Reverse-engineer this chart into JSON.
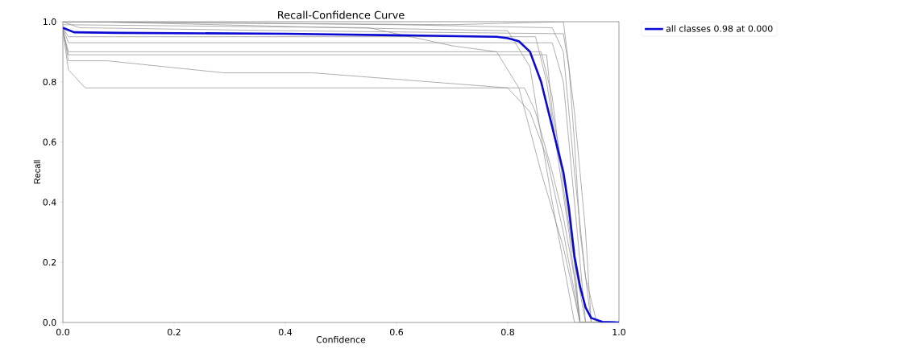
{
  "chart_data": {
    "type": "line",
    "title": "Recall-Confidence Curve",
    "xlabel": "Confidence",
    "ylabel": "Recall",
    "xlim": [
      0,
      1
    ],
    "ylim": [
      0,
      1
    ],
    "xticks": [
      {
        "value": 0,
        "label": "0.0"
      },
      {
        "value": 0.2,
        "label": "0.2"
      },
      {
        "value": 0.4,
        "label": "0.4"
      },
      {
        "value": 0.6,
        "label": "0.6"
      },
      {
        "value": 0.8,
        "label": "0.8"
      },
      {
        "value": 1,
        "label": "1.0"
      }
    ],
    "yticks": [
      {
        "value": 0,
        "label": "0.0"
      },
      {
        "value": 0.2,
        "label": "0.2"
      },
      {
        "value": 0.4,
        "label": "0.4"
      },
      {
        "value": 0.6,
        "label": "0.6"
      },
      {
        "value": 0.8,
        "label": "0.8"
      },
      {
        "value": 1,
        "label": "1.0"
      }
    ],
    "legend": "top right",
    "series": [
      {
        "color": "#8c8c8c",
        "x": [
          0,
          0.01,
          0.04,
          0.83,
          0.85,
          0.88,
          0.9,
          0.92,
          0.93,
          1
        ],
        "values": [
          0.97,
          0.84,
          0.78,
          0.78,
          0.7,
          0.5,
          0.35,
          0.15,
          0,
          0
        ]
      },
      {
        "color": "#8c8c8c",
        "x": [
          0,
          0.01,
          0.08,
          0.29,
          0.45,
          0.8,
          0.84,
          0.87,
          0.9,
          0.92,
          0.93,
          1
        ],
        "values": [
          0.98,
          0.87,
          0.87,
          0.83,
          0.83,
          0.78,
          0.7,
          0.55,
          0.3,
          0.1,
          0,
          0
        ]
      },
      {
        "color": "#8c8c8c",
        "x": [
          0,
          0.01,
          0.87,
          0.88,
          0.9,
          0.92,
          0.93,
          1
        ],
        "values": [
          0.97,
          0.89,
          0.89,
          0.7,
          0.5,
          0.2,
          0,
          0
        ]
      },
      {
        "color": "#8c8c8c",
        "x": [
          0,
          0.01,
          0.86,
          0.88,
          0.9,
          0.92,
          0.94,
          1
        ],
        "values": [
          0.97,
          0.9,
          0.9,
          0.75,
          0.45,
          0.2,
          0,
          0
        ]
      },
      {
        "color": "#8c8c8c",
        "x": [
          0,
          0.01,
          0.88,
          0.9,
          0.91,
          0.93,
          0.94,
          1
        ],
        "values": [
          0.98,
          0.93,
          0.93,
          0.8,
          0.6,
          0.2,
          0,
          0
        ]
      },
      {
        "color": "#8c8c8c",
        "x": [
          0,
          0.01,
          0.85,
          0.87,
          0.89,
          0.91,
          0.93,
          1
        ],
        "values": [
          0.98,
          0.95,
          0.95,
          0.8,
          0.55,
          0.3,
          0,
          0
        ]
      },
      {
        "color": "#8c8c8c",
        "x": [
          0,
          0.03,
          0.4,
          0.9,
          0.91,
          0.92,
          0.93,
          0.95,
          1
        ],
        "values": [
          1,
          0.98,
          0.97,
          0.96,
          0.85,
          0.6,
          0.3,
          0,
          0
        ]
      },
      {
        "color": "#8c8c8c",
        "x": [
          0,
          0.6,
          0.88,
          0.9,
          0.92,
          0.94,
          0.96,
          1
        ],
        "values": [
          1,
          0.99,
          0.98,
          0.9,
          0.5,
          0.15,
          0,
          0
        ]
      },
      {
        "color": "#8c8c8c",
        "x": [
          0,
          0.05,
          0.5,
          0.8,
          0.84,
          0.86,
          0.88,
          0.9,
          0.92,
          1
        ],
        "values": [
          1,
          1,
          0.98,
          0.97,
          0.85,
          0.62,
          0.4,
          0.2,
          0,
          0
        ]
      },
      {
        "color": "#8c8c8c",
        "x": [
          0,
          0.55,
          0.7,
          0.78,
          0.82,
          0.86,
          0.9,
          0.93,
          1
        ],
        "values": [
          0.99,
          0.98,
          0.92,
          0.9,
          0.78,
          0.5,
          0.25,
          0,
          0
        ]
      },
      {
        "color": "#8c8c8c",
        "x": [
          0,
          0.7,
          0.9,
          0.92,
          0.94,
          0.95,
          1
        ],
        "values": [
          1,
          0.99,
          1,
          0.7,
          0.3,
          0,
          0
        ]
      },
      {
        "name": "all classes 0.98 at 0.000",
        "color": "#0a0ad2",
        "x": [
          0,
          0.02,
          0.1,
          0.4,
          0.6,
          0.78,
          0.8,
          0.82,
          0.84,
          0.86,
          0.88,
          0.9,
          0.91,
          0.92,
          0.93,
          0.94,
          0.95,
          0.97,
          1
        ],
        "values": [
          0.98,
          0.965,
          0.963,
          0.96,
          0.955,
          0.95,
          0.945,
          0.935,
          0.9,
          0.8,
          0.65,
          0.5,
          0.38,
          0.22,
          0.12,
          0.05,
          0.015,
          0.002,
          0
        ]
      }
    ]
  }
}
